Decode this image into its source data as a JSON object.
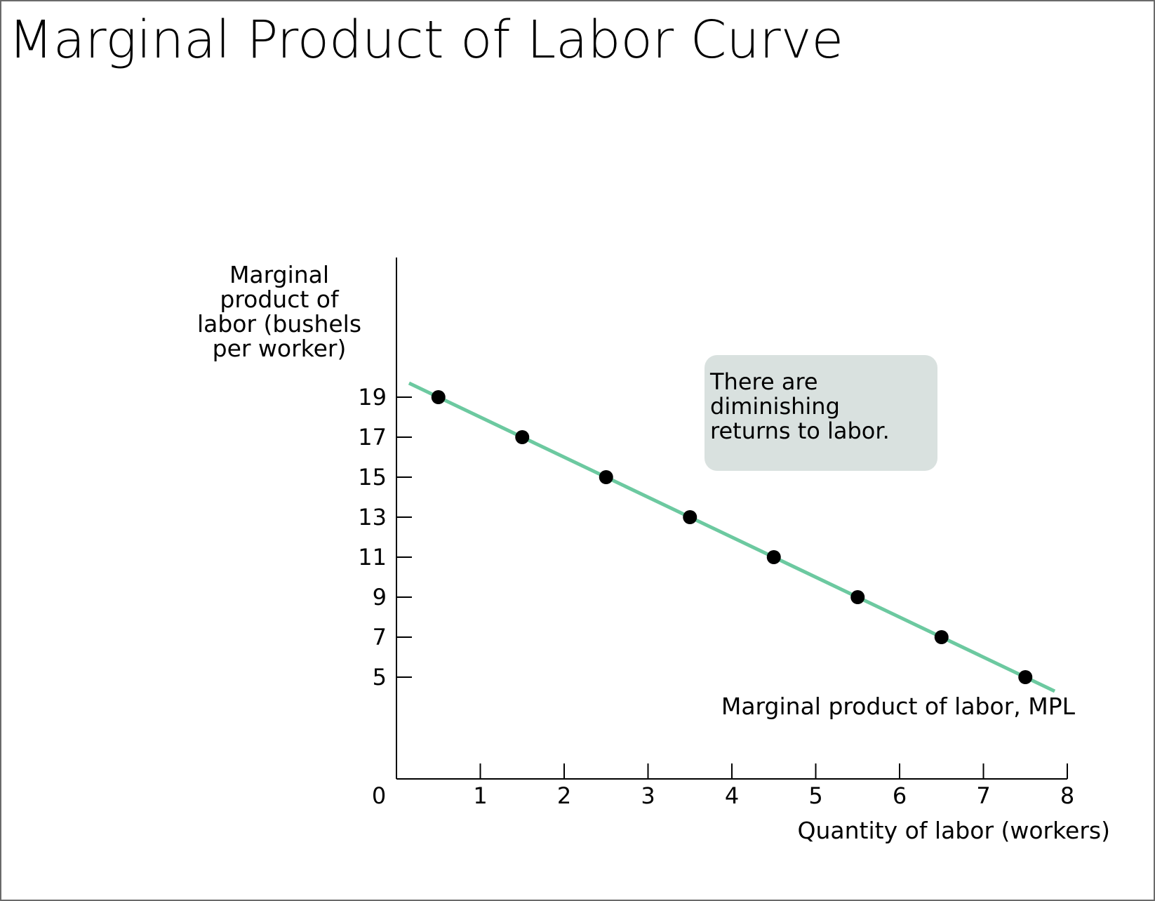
{
  "slide": {
    "title": "Marginal Product of Labor Curve"
  },
  "chart_data": {
    "type": "line",
    "title": "",
    "xlabel": "Quantity of labor (workers)",
    "ylabel_lines": [
      "Marginal",
      "product of",
      "labor (bushels",
      "per worker)"
    ],
    "xlim": [
      0,
      8
    ],
    "ylim": [
      0,
      24
    ],
    "x_ticks": [
      0,
      1,
      2,
      3,
      4,
      5,
      6,
      7,
      8
    ],
    "y_ticks": [
      5,
      7,
      9,
      11,
      13,
      15,
      17,
      19
    ],
    "grid": false,
    "series": [
      {
        "name": "Marginal product of labor, MPL",
        "color": "#6cc9a0",
        "x": [
          0.5,
          1.5,
          2.5,
          3.5,
          4.5,
          5.5,
          6.5,
          7.5
        ],
        "y": [
          19,
          17,
          15,
          13,
          11,
          9,
          7,
          5
        ],
        "line_extent_x": [
          0.15,
          7.85
        ]
      }
    ],
    "annotation": {
      "lines": [
        "There are",
        "diminishing",
        "returns to labor."
      ],
      "box_color": "#d9e1df"
    },
    "point_color": "#000000",
    "axis_color": "#000000"
  }
}
